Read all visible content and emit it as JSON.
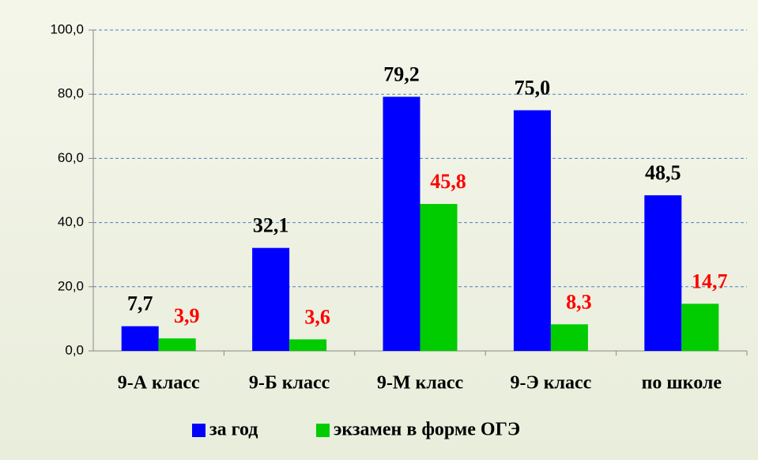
{
  "chart_data": {
    "type": "bar",
    "categories": [
      "9-А класс",
      "9-Б класс",
      "9-М класс",
      "9-Э класс",
      "по школе"
    ],
    "series": [
      {
        "name": "за год",
        "color": "#0000ff",
        "values": [
          7.7,
          32.1,
          79.2,
          75.0,
          48.5
        ],
        "value_labels": [
          "7,7",
          "32,1",
          "79,2",
          "75,0",
          "48,5"
        ],
        "label_color": "#000000"
      },
      {
        "name": "экзамен в форме ОГЭ",
        "color": "#00cc00",
        "values": [
          3.9,
          3.6,
          45.8,
          8.3,
          14.7
        ],
        "value_labels": [
          "3,9",
          "3,6",
          "45,8",
          "8,3",
          "14,7"
        ],
        "label_color": "#ff0000"
      }
    ],
    "ylim": [
      0,
      100
    ],
    "yticks": [
      {
        "value": 0,
        "label": "0,0"
      },
      {
        "value": 20,
        "label": "20,0"
      },
      {
        "value": 40,
        "label": "40,0"
      },
      {
        "value": 60,
        "label": "60,0"
      },
      {
        "value": 80,
        "label": "80,0"
      },
      {
        "value": 100,
        "label": "100,0"
      }
    ],
    "grid": true,
    "legend": "bottom"
  }
}
